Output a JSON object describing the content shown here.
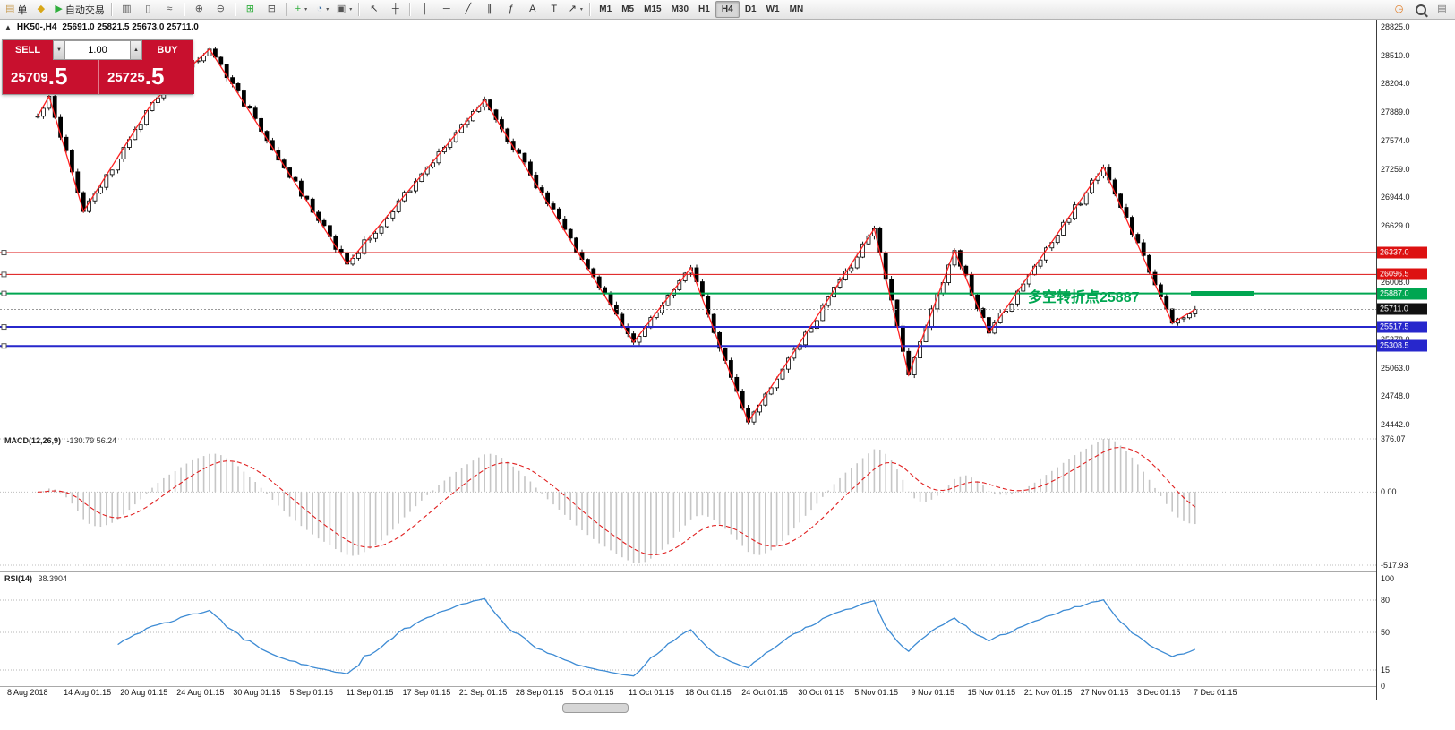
{
  "colors": {
    "trade_red": "#c8102e",
    "candle_up": "#ffffff",
    "candle_down": "#000000",
    "candle_outline": "#000000",
    "zigzag": "#ff2222",
    "level_red": "#dd1111",
    "level_green": "#00a651",
    "level_blue": "#2727cc",
    "current_badge": "#111111",
    "macd_histogram": "#c6c6c6",
    "macd_signal": "#e02020",
    "rsi_line": "#3d8bd4",
    "annotation_green": "#00a651"
  },
  "toolbar": {
    "groups": [
      {
        "items": [
          {
            "name": "new-order-button",
            "glyph": "▤",
            "color": "#caa05a",
            "label": "单"
          },
          {
            "name": "charts-menu-button",
            "glyph": "◆",
            "color": "#d8a718"
          },
          {
            "name": "autotrading-button",
            "glyph": "▶",
            "color": "#2fae3c",
            "label": "自动交易"
          }
        ]
      },
      {
        "items": [
          {
            "name": "bar-chart-type-button",
            "glyph": "▥",
            "color": "#555555"
          },
          {
            "name": "candlestick-type-button",
            "glyph": "▯",
            "color": "#555555"
          },
          {
            "name": "line-chart-type-button",
            "glyph": "≈",
            "color": "#555555"
          }
        ]
      },
      {
        "items": [
          {
            "name": "zoom-in-button",
            "glyph": "⊕",
            "color": "#555555"
          },
          {
            "name": "zoom-out-button",
            "glyph": "⊖",
            "color": "#555555"
          }
        ]
      },
      {
        "items": [
          {
            "name": "tile-windows-button",
            "glyph": "⊞",
            "color": "#2fae3c"
          },
          {
            "name": "cascade-windows-button",
            "glyph": "⊟",
            "color": "#555555"
          }
        ]
      },
      {
        "items": [
          {
            "name": "indicators-button",
            "glyph": "+",
            "color": "#2fae3c",
            "dropdown": true
          },
          {
            "name": "periods-button",
            "glyph": "◔",
            "color": "#3a6ea5",
            "dropdown": true
          },
          {
            "name": "templates-button",
            "glyph": "▣",
            "color": "#555555",
            "dropdown": true
          }
        ]
      },
      {
        "items": [
          {
            "name": "cursor-button",
            "glyph": "↖",
            "color": "#333333"
          },
          {
            "name": "crosshair-button",
            "glyph": "┼",
            "color": "#333333"
          }
        ]
      },
      {
        "items": [
          {
            "name": "vertical-line-button",
            "glyph": "│",
            "color": "#333333"
          },
          {
            "name": "horizontal-line-button",
            "glyph": "─",
            "color": "#333333"
          },
          {
            "name": "trendline-button",
            "glyph": "╱",
            "color": "#333333"
          },
          {
            "name": "equidistant-channel-button",
            "glyph": "∥",
            "color": "#333333"
          },
          {
            "name": "fibonacci-button",
            "glyph": "ƒ",
            "color": "#333333"
          },
          {
            "name": "text-button",
            "glyph": "A",
            "color": "#333333"
          },
          {
            "name": "text-label-button",
            "glyph": "T",
            "color": "#333333"
          },
          {
            "name": "arrows-button",
            "glyph": "↗",
            "color": "#333333",
            "dropdown": true
          }
        ]
      }
    ],
    "timeframes": {
      "active": "H4",
      "items": [
        "M1",
        "M5",
        "M15",
        "M30",
        "H1",
        "H4",
        "D1",
        "W1",
        "MN"
      ]
    },
    "right_items": [
      {
        "name": "alert-clock-button",
        "glyph": "◷",
        "color": "#e0781e"
      },
      {
        "name": "search-button",
        "shape": "magnifier"
      },
      {
        "name": "new-chart-button",
        "glyph": "▤",
        "color": "#777777"
      }
    ]
  },
  "chart": {
    "collapse_glyph": "▲",
    "symbol_period": "HK50-,H4",
    "ohlc": "25691.0 25821.5 25673.0 25711.0",
    "annotation": {
      "text": "多空转折点25887",
      "color": "#00a651"
    },
    "price_axis_range": {
      "top": 28825.0,
      "bottom": 24442.0
    },
    "price_axis_labels": [
      "28825.0",
      "28510.0",
      "28204.0",
      "27889.0",
      "27574.0",
      "27259.0",
      "26944.0",
      "26629.0",
      "26314.0",
      "26008.0",
      "25693.0",
      "25378.0",
      "25063.0",
      "24748.0",
      "24442.0"
    ],
    "levels": [
      {
        "value": "26337.0",
        "price": 26337.0,
        "color": "#dd1111",
        "thickness": 1
      },
      {
        "value": "26096.5",
        "price": 26096.5,
        "color": "#dd1111",
        "thickness": 1
      },
      {
        "value": "25887.0",
        "price": 25887.0,
        "color": "#00a651",
        "thickness": 2
      },
      {
        "value": "25517.5",
        "price": 25517.5,
        "color": "#2727cc",
        "thickness": 2
      },
      {
        "value": "25308.5",
        "price": 25308.5,
        "color": "#2727cc",
        "thickness": 2
      }
    ],
    "current_price": {
      "value": "25711.0",
      "price": 25711.0
    },
    "candles": {
      "count": 203,
      "pivots": [
        [
          0,
          27840
        ],
        [
          2,
          28060
        ],
        [
          8,
          26790
        ],
        [
          20,
          27990
        ],
        [
          30,
          28580
        ],
        [
          54,
          26210
        ],
        [
          78,
          28020
        ],
        [
          96,
          26160
        ],
        [
          104,
          25350
        ],
        [
          114,
          26170
        ],
        [
          124,
          24470
        ],
        [
          146,
          26600
        ],
        [
          152,
          24990
        ],
        [
          160,
          26360
        ],
        [
          166,
          25450
        ],
        [
          186,
          27280
        ],
        [
          198,
          25560
        ],
        [
          202,
          25711
        ]
      ]
    },
    "time_axis": [
      "8 Aug 2018",
      "14 Aug 01:15",
      "20 Aug 01:15",
      "24 Aug 01:15",
      "30 Aug 01:15",
      "5 Sep 01:15",
      "11 Sep 01:15",
      "17 Sep 01:15",
      "21 Sep 01:15",
      "28 Sep 01:15",
      "5 Oct 01:15",
      "11 Oct 01:15",
      "18 Oct 01:15",
      "24 Oct 01:15",
      "30 Oct 01:15",
      "5 Nov 01:15",
      "9 Nov 01:15",
      "15 Nov 01:15",
      "21 Nov 01:15",
      "27 Nov 01:15",
      "3 Dec 01:15",
      "7 Dec 01:15"
    ]
  },
  "one_click": {
    "sell_label": "SELL",
    "buy_label": "BUY",
    "volume": "1.00",
    "spin_down": "▼",
    "spin_up": "▲",
    "sell_price_main": "25709",
    "sell_price_frac": ".5",
    "buy_price_main": "25725",
    "buy_price_frac": ".5"
  },
  "macd": {
    "label": "MACD(12,26,9)",
    "values": "-130.79 56.24",
    "axis": [
      "376.07",
      "0.00",
      "-517.93"
    ]
  },
  "rsi": {
    "label": "RSI(14)",
    "value": "38.3904",
    "axis_values": [
      100,
      80,
      50,
      15,
      0
    ],
    "level_lines": [
      80,
      50,
      15
    ]
  }
}
